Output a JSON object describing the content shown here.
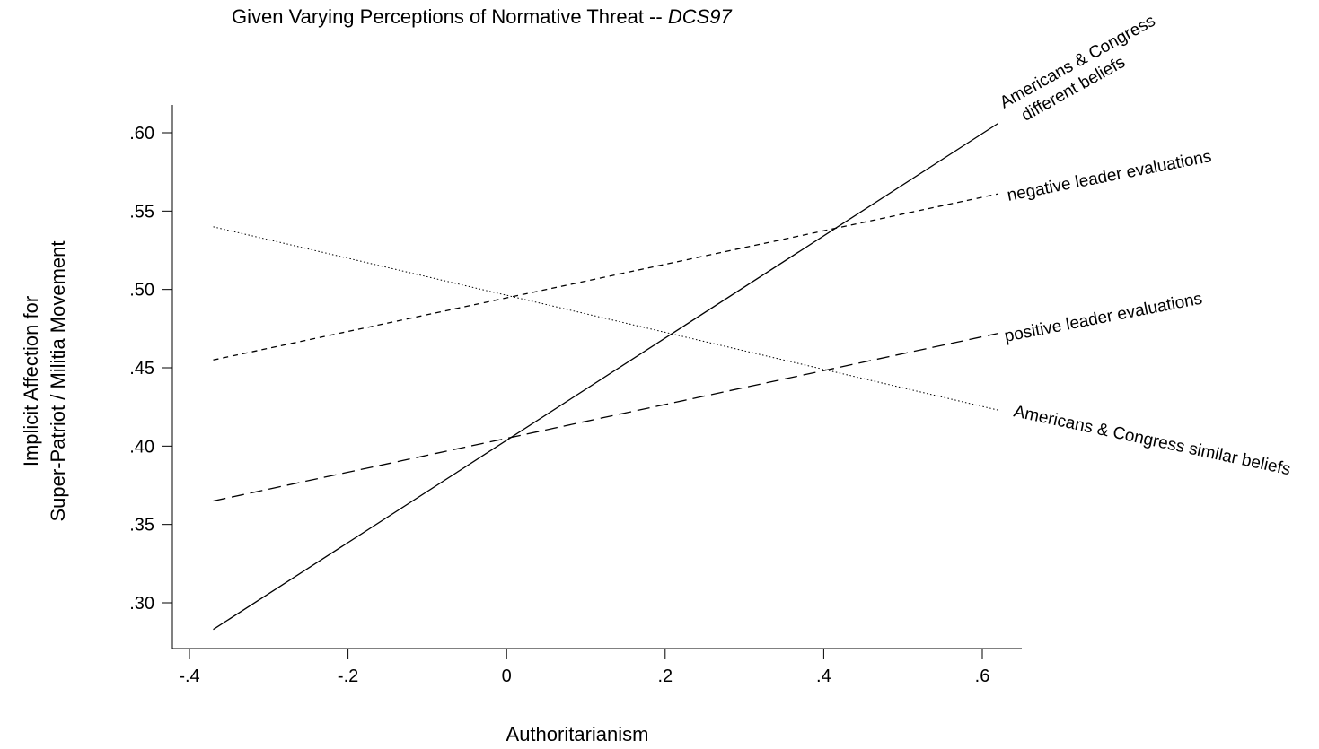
{
  "chart_data": {
    "type": "line",
    "title": "Given Varying Perceptions of Normative Threat -- ",
    "title_italic": "DCS97",
    "xlabel": "Authoritarianism",
    "ylabel_lines": [
      "Implicit Affection for",
      "Super-Patriot / Militia Movement"
    ],
    "xlim": [
      -0.4,
      0.6
    ],
    "ylim": [
      0.3,
      0.6
    ],
    "x_ticks": [
      {
        "value": -0.4,
        "label": "-.4"
      },
      {
        "value": -0.2,
        "label": "-.2"
      },
      {
        "value": 0,
        "label": "0"
      },
      {
        "value": 0.2,
        "label": ".2"
      },
      {
        "value": 0.4,
        "label": ".4"
      },
      {
        "value": 0.6,
        "label": ".6"
      }
    ],
    "y_ticks": [
      {
        "value": 0.3,
        "label": ".30"
      },
      {
        "value": 0.35,
        "label": ".35"
      },
      {
        "value": 0.4,
        "label": ".40"
      },
      {
        "value": 0.45,
        "label": ".45"
      },
      {
        "value": 0.5,
        "label": ".50"
      },
      {
        "value": 0.55,
        "label": ".55"
      },
      {
        "value": 0.6,
        "label": ".60"
      }
    ],
    "grid": false,
    "legend": "none",
    "series": [
      {
        "name": "Americans & Congress different beliefs",
        "label_lines": [
          "Americans & Congress",
          "different beliefs"
        ],
        "style": "solid",
        "x": [
          -0.37,
          0.62
        ],
        "y": [
          0.283,
          0.606
        ]
      },
      {
        "name": "negative leader evaluations",
        "label_lines": [
          "negative leader evaluations"
        ],
        "style": "short-dash",
        "x": [
          -0.37,
          0.62
        ],
        "y": [
          0.455,
          0.561
        ]
      },
      {
        "name": "positive leader evaluations",
        "label_lines": [
          "positive leader evaluations"
        ],
        "style": "long-dash",
        "x": [
          -0.37,
          0.62
        ],
        "y": [
          0.365,
          0.472
        ]
      },
      {
        "name": "Americans & Congress similar beliefs",
        "label_lines": [
          "Americans & Congress similar beliefs"
        ],
        "style": "dotted",
        "x": [
          -0.37,
          0.62
        ],
        "y": [
          0.54,
          0.423
        ]
      }
    ]
  }
}
